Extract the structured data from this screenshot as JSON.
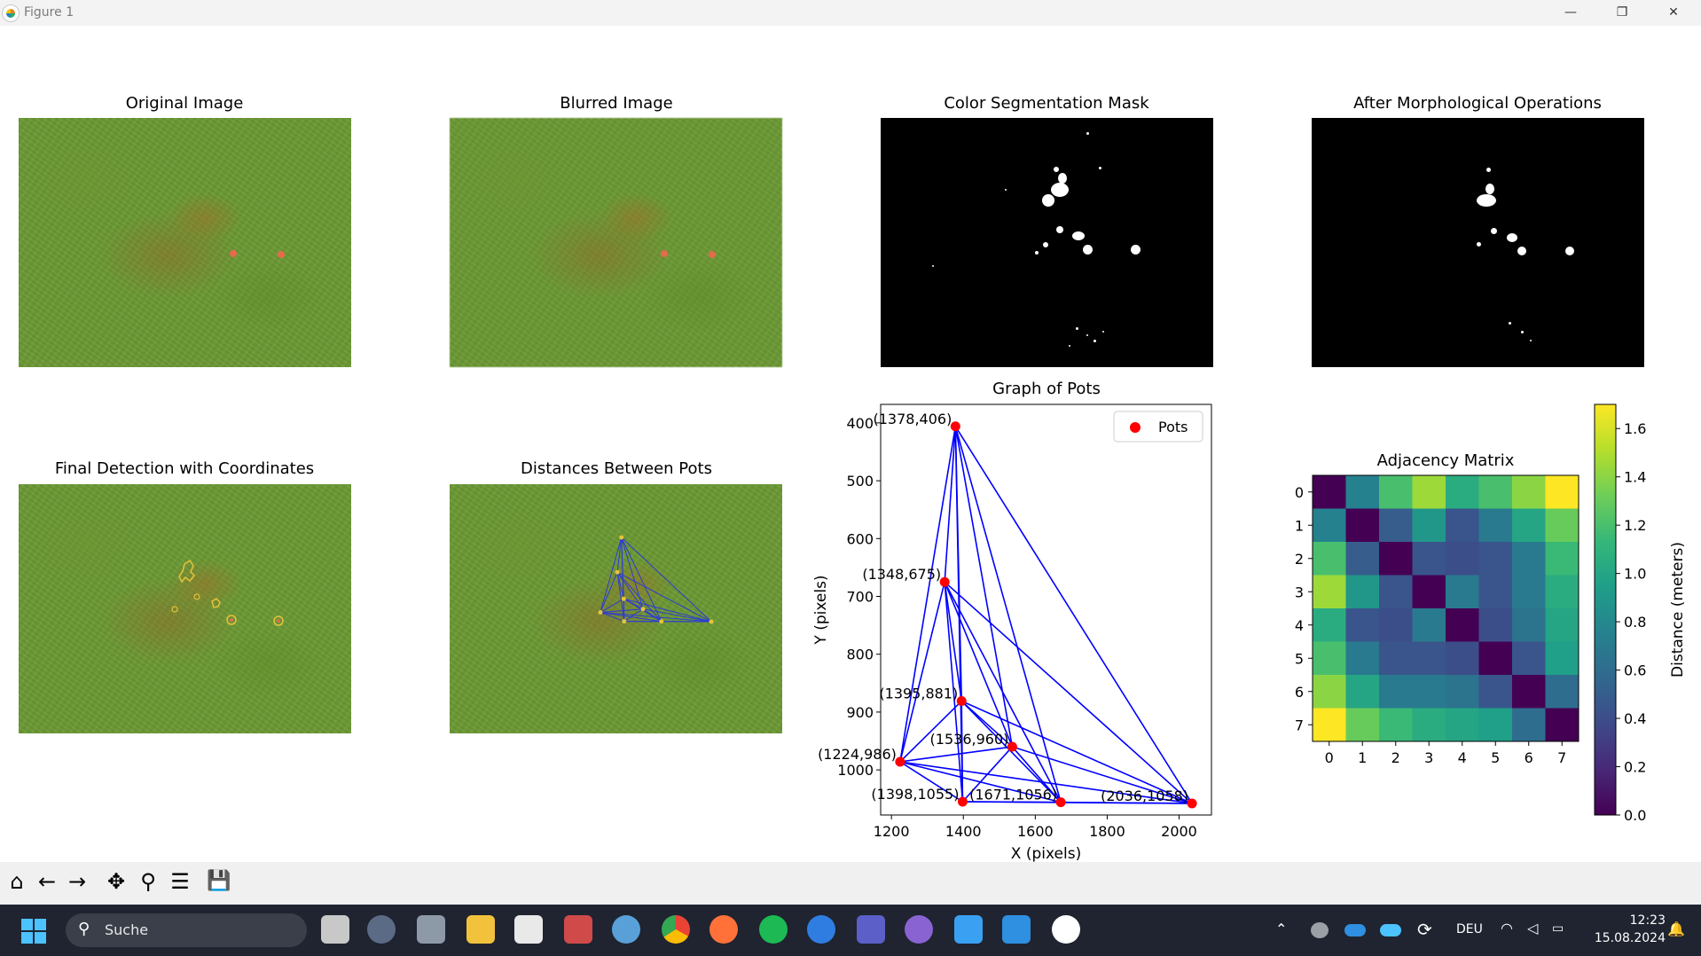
{
  "window": {
    "title": "Figure 1",
    "minimize_glyph": "—",
    "maximize_glyph": "❐",
    "close_glyph": "✕"
  },
  "panels": {
    "original": {
      "title": "Original Image"
    },
    "blurred": {
      "title": "Blurred Image"
    },
    "mask": {
      "title": "Color Segmentation Mask"
    },
    "morph": {
      "title": "After Morphological Operations"
    },
    "final": {
      "title": "Final Detection with Coordinates"
    },
    "distances": {
      "title": "Distances Between Pots"
    }
  },
  "chart_data": [
    {
      "type": "scatter",
      "title": "Graph of Pots",
      "xlabel": "X (pixels)",
      "ylabel": "Y (pixels)",
      "xlim": [
        1170,
        2090
      ],
      "ylim": [
        1078,
        368
      ],
      "y_inverted": true,
      "xticks": [
        1200,
        1400,
        1600,
        1800,
        2000
      ],
      "yticks": [
        400,
        500,
        600,
        700,
        800,
        900,
        1000
      ],
      "legend": {
        "label": "Pots",
        "position": "top-right"
      },
      "points": [
        {
          "x": 1378,
          "y": 406,
          "label": "(1378,406)"
        },
        {
          "x": 1348,
          "y": 675,
          "label": "(1348,675)"
        },
        {
          "x": 1395,
          "y": 881,
          "label": "(1395,881)"
        },
        {
          "x": 1536,
          "y": 960,
          "label": "(1536,960)"
        },
        {
          "x": 1224,
          "y": 986,
          "label": "(1224,986)"
        },
        {
          "x": 1398,
          "y": 1055,
          "label": "(1398,1055)"
        },
        {
          "x": 1671,
          "y": 1056,
          "label": "(1671,1056)"
        },
        {
          "x": 2036,
          "y": 1058,
          "label": "(2036,1058)"
        }
      ],
      "edges": "complete",
      "point_color": "#ff0000",
      "edge_color": "#0000ff"
    },
    {
      "type": "heatmap",
      "title": "Adjacency Matrix",
      "xticks": [
        "0",
        "1",
        "2",
        "3",
        "4",
        "5",
        "6",
        "7"
      ],
      "yticks": [
        "0",
        "1",
        "2",
        "3",
        "4",
        "5",
        "6",
        "7"
      ],
      "colorbar_label": "Distance (meters)",
      "colorbar_ticks": [
        "0.0",
        "0.2",
        "0.4",
        "0.6",
        "0.8",
        "1.0",
        "1.2",
        "1.4",
        "1.6"
      ],
      "vmin": 0,
      "vmax": 1.7,
      "colormap": "viridis",
      "values": [
        [
          0.0,
          0.75,
          1.2,
          1.45,
          1.05,
          1.2,
          1.4,
          1.7
        ],
        [
          0.75,
          0.0,
          0.5,
          0.9,
          0.45,
          0.7,
          1.0,
          1.3
        ],
        [
          1.2,
          0.5,
          0.0,
          0.45,
          0.4,
          0.45,
          0.7,
          1.15
        ],
        [
          1.45,
          0.9,
          0.45,
          0.0,
          0.7,
          0.45,
          0.7,
          1.05
        ],
        [
          1.05,
          0.45,
          0.4,
          0.7,
          0.0,
          0.4,
          0.65,
          1.0
        ],
        [
          1.2,
          0.7,
          0.45,
          0.45,
          0.4,
          0.0,
          0.45,
          0.95
        ],
        [
          1.4,
          1.0,
          0.7,
          0.7,
          0.65,
          0.45,
          0.0,
          0.6
        ],
        [
          1.7,
          1.3,
          1.15,
          1.05,
          1.0,
          0.95,
          0.6,
          0.0
        ]
      ]
    }
  ],
  "toolbar": {
    "home": "⌂",
    "back": "←",
    "forward": "→",
    "pan": "✥",
    "zoom": "⚲",
    "configure": "☰",
    "save": "💾"
  },
  "taskbar": {
    "search_label": "Suche",
    "language": "DEU",
    "time": "12:23",
    "date": "15.08.2024",
    "colors": {
      "explorer": "#f2c23d",
      "chrome": "#4caf50",
      "firefox": "#ff7139",
      "spotify": "#1db954",
      "teams": "#5b5fc7",
      "github": "#8a63d2",
      "notepad": "#3aa0f2",
      "vscode": "#2f8fe0"
    }
  }
}
